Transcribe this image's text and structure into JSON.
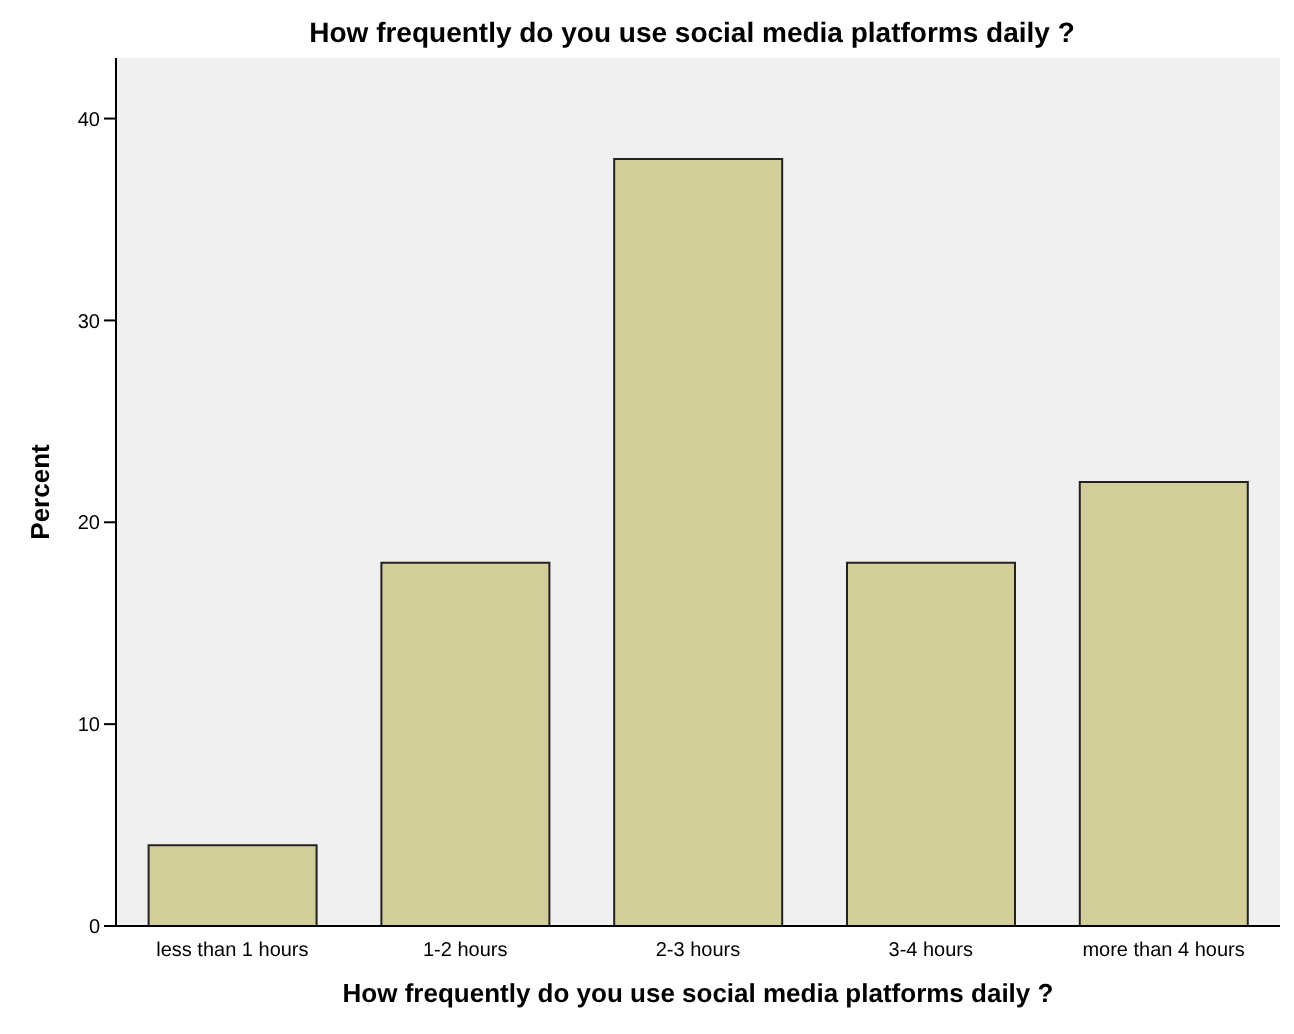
{
  "chart_data": {
    "type": "bar",
    "title": "How frequently do you use social media platforms daily ?",
    "xlabel": "How frequently do you use social media platforms daily ?",
    "ylabel": "Percent",
    "categories": [
      "less than 1 hours",
      "1-2 hours",
      "2-3 hours",
      "3-4 hours",
      "more than 4 hours"
    ],
    "values": [
      4,
      18,
      38,
      18,
      22
    ],
    "color": "#d3ce99",
    "ylim": [
      0,
      43
    ],
    "yticks": [
      0,
      10,
      20,
      30,
      40
    ],
    "grid": false
  }
}
